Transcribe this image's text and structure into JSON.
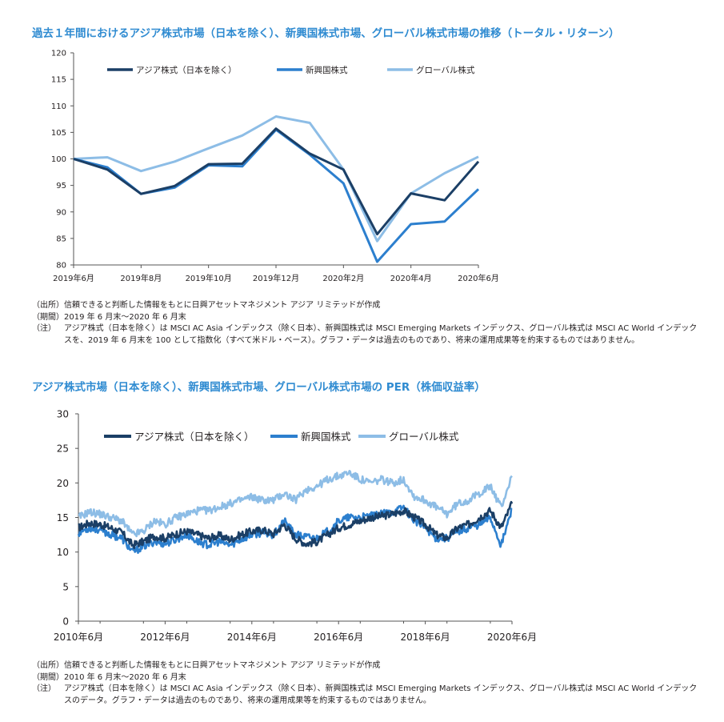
{
  "titles": {
    "chart1": "過去１年間におけるアジア株式市場（日本を除く）、新興国株式市場、グローバル株式市場の推移（トータル・リターン）",
    "chart2": "アジア株式市場（日本を除く）、新興国株式市場、グローバル株式市場の PER（株価収益率）"
  },
  "notes1": {
    "source_label": "（出所）",
    "source": "信頼できると判断した情報をもとに日興アセットマネジメント アジア リミテッドが作成",
    "period_label": "（期間）",
    "period": "2019 年 6 月末～2020 年 6 月末",
    "note_label": "（注）",
    "note": "アジア株式（日本を除く）は MSCI AC Asia インデックス（除く日本）、新興国株式は MSCI Emerging Markets インデックス、グローバル株式は MSCI AC World インデックスを、2019 年 6 月末を 100 として指数化（すべて米ドル・ベース）。グラフ・データは過去のものであり、将来の運用成果等を約束するものではありません。"
  },
  "notes2": {
    "source_label": "（出所）",
    "source": "信頼できると判断した情報をもとに日興アセットマネジメント アジア リミテッドが作成",
    "period_label": "（期間）",
    "period": "2010 年 6 月末～2020 年 6 月末",
    "note_label": "（注）",
    "note": "アジア株式（日本を除く）は MSCI AC Asia インデックス（除く日本）、新興国株式は MSCI Emerging Markets インデックス、グローバル株式は MSCI AC World インデックスのデータ。グラフ・データは過去のものであり、将来の運用成果等を約束するものではありません。"
  },
  "chart_data": [
    {
      "type": "line",
      "x": [
        "2019年6月",
        "2019年7月",
        "2019年8月",
        "2019年9月",
        "2019年10月",
        "2019年11月",
        "2019年12月",
        "2020年1月",
        "2020年2月",
        "2020年3月",
        "2020年4月",
        "2020年5月",
        "2020年6月"
      ],
      "xticks": [
        "2019年6月",
        "2019年8月",
        "2019年10月",
        "2019年12月",
        "2020年2月",
        "2020年4月",
        "2020年6月"
      ],
      "ylim": [
        80,
        120
      ],
      "yticks": [
        80,
        85,
        90,
        95,
        100,
        105,
        110,
        115,
        120
      ],
      "legend_position": "top",
      "grid": false,
      "series": [
        {
          "name": "アジア株式（日本を除く）",
          "color": "#1b3f66",
          "values": [
            100,
            98.0,
            93.4,
            94.9,
            99.0,
            99.1,
            105.7,
            101.0,
            98.0,
            85.8,
            93.5,
            92.2,
            99.5
          ]
        },
        {
          "name": "新興国株式",
          "color": "#2c7fce",
          "values": [
            100,
            98.4,
            93.4,
            94.6,
            98.8,
            98.6,
            105.5,
            100.8,
            95.4,
            80.6,
            87.7,
            88.2,
            94.3
          ]
        },
        {
          "name": "グローバル株式",
          "color": "#8dbde6",
          "values": [
            100,
            100.3,
            97.7,
            99.5,
            102.0,
            104.4,
            108.0,
            106.8,
            98.0,
            84.5,
            93.5,
            97.3,
            100.4
          ]
        }
      ]
    },
    {
      "type": "line",
      "xlim": [
        2010.5,
        2020.5
      ],
      "xticks": [
        "2010年6月",
        "2012年6月",
        "2014年6月",
        "2016年6月",
        "2018年6月",
        "2020年6月"
      ],
      "ylim": [
        0,
        30
      ],
      "yticks": [
        0,
        5,
        10,
        15,
        20,
        25,
        30
      ],
      "legend_position": "top",
      "grid": false,
      "series": [
        {
          "name": "アジア株式（日本を除く）",
          "color": "#1b3f66",
          "x": [
            2010.5,
            2010.75,
            2011.0,
            2011.25,
            2011.5,
            2011.75,
            2012.0,
            2012.25,
            2012.5,
            2012.75,
            2013.0,
            2013.25,
            2013.5,
            2013.75,
            2014.0,
            2014.25,
            2014.5,
            2014.75,
            2015.0,
            2015.25,
            2015.5,
            2015.75,
            2016.0,
            2016.25,
            2016.5,
            2016.75,
            2017.0,
            2017.25,
            2017.5,
            2017.75,
            2018.0,
            2018.25,
            2018.5,
            2018.75,
            2019.0,
            2019.25,
            2019.5,
            2019.75,
            2020.0,
            2020.25,
            2020.5
          ],
          "values": [
            13.5,
            14.2,
            14.0,
            13.5,
            12.8,
            11.0,
            11.5,
            12.3,
            12.0,
            12.6,
            13.0,
            12.5,
            12.0,
            12.4,
            11.8,
            12.5,
            13.0,
            13.2,
            12.6,
            14.0,
            12.0,
            11.2,
            11.5,
            12.5,
            13.5,
            14.0,
            14.5,
            15.0,
            15.2,
            15.5,
            16.0,
            15.0,
            14.0,
            12.5,
            12.0,
            13.5,
            14.0,
            15.0,
            16.0,
            13.5,
            17.0
          ]
        },
        {
          "name": "新興国株式",
          "color": "#2c7fce",
          "x": [
            2010.5,
            2010.75,
            2011.0,
            2011.25,
            2011.5,
            2011.75,
            2012.0,
            2012.25,
            2012.5,
            2012.75,
            2013.0,
            2013.25,
            2013.5,
            2013.75,
            2014.0,
            2014.25,
            2014.5,
            2014.75,
            2015.0,
            2015.25,
            2015.5,
            2015.75,
            2016.0,
            2016.25,
            2016.5,
            2016.75,
            2017.0,
            2017.25,
            2017.5,
            2017.75,
            2018.0,
            2018.25,
            2018.5,
            2018.75,
            2019.0,
            2019.25,
            2019.5,
            2019.75,
            2020.0,
            2020.25,
            2020.5
          ],
          "values": [
            12.8,
            13.5,
            13.2,
            12.5,
            12.0,
            10.0,
            10.8,
            11.5,
            11.2,
            11.8,
            12.5,
            11.5,
            11.0,
            11.5,
            11.0,
            11.8,
            12.5,
            12.8,
            12.5,
            14.5,
            12.5,
            12.2,
            12.0,
            13.0,
            14.5,
            15.0,
            15.0,
            15.2,
            15.5,
            15.8,
            16.5,
            14.5,
            13.5,
            12.0,
            12.0,
            13.0,
            13.5,
            14.0,
            15.0,
            11.0,
            16.2
          ]
        },
        {
          "name": "グローバル株式",
          "color": "#8dbde6",
          "x": [
            2010.5,
            2010.75,
            2011.0,
            2011.25,
            2011.5,
            2011.75,
            2012.0,
            2012.25,
            2012.5,
            2012.75,
            2013.0,
            2013.25,
            2013.5,
            2013.75,
            2014.0,
            2014.25,
            2014.5,
            2014.75,
            2015.0,
            2015.25,
            2015.5,
            2015.75,
            2016.0,
            2016.25,
            2016.5,
            2016.75,
            2017.0,
            2017.25,
            2017.5,
            2017.75,
            2018.0,
            2018.25,
            2018.5,
            2018.75,
            2019.0,
            2019.25,
            2019.5,
            2019.75,
            2020.0,
            2020.25,
            2020.5
          ],
          "values": [
            15.0,
            15.8,
            15.5,
            15.0,
            14.5,
            12.5,
            13.0,
            14.5,
            14.0,
            15.0,
            15.5,
            16.0,
            16.0,
            16.5,
            17.0,
            17.5,
            18.0,
            17.5,
            17.5,
            18.5,
            17.5,
            19.0,
            19.5,
            20.5,
            21.0,
            21.5,
            20.5,
            20.0,
            20.5,
            20.0,
            20.5,
            18.0,
            17.5,
            16.5,
            15.5,
            17.0,
            17.5,
            18.5,
            19.5,
            16.5,
            21.0
          ]
        }
      ]
    }
  ]
}
